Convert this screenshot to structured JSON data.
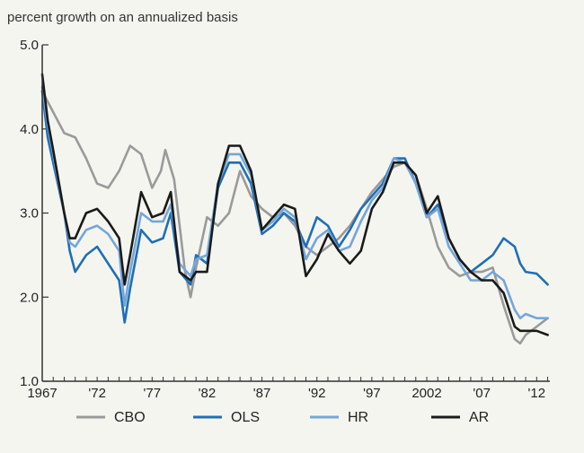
{
  "chart_data": {
    "type": "line",
    "title": "",
    "ylabel": "percent growth on an annualized basis",
    "xlabel": "",
    "xlim": [
      1967,
      2013.2
    ],
    "ylim": [
      1.0,
      5.0
    ],
    "yticks": [
      1.0,
      2.0,
      3.0,
      4.0,
      5.0
    ],
    "ytick_labels": [
      "1.0",
      "2.0",
      "3.0",
      "4.0",
      "5.0"
    ],
    "xticks": [
      1967,
      1972,
      1977,
      1982,
      1987,
      1992,
      1997,
      2002,
      2007,
      2012
    ],
    "xtick_labels": [
      "1967",
      "'72",
      "'77",
      "'82",
      "'87",
      "'92",
      "'97",
      "2002",
      "'07",
      "'12"
    ],
    "legend_position": "bottom",
    "series": [
      {
        "name": "CBO",
        "color": "#9a9a9a",
        "x": [
          1967,
          1968,
          1969,
          1970,
          1971,
          1972,
          1973,
          1974,
          1975,
          1976,
          1977,
          1977.8,
          1978.2,
          1979,
          1980,
          1980.5,
          1981,
          1982,
          1983,
          1984,
          1985,
          1986,
          1987,
          1988,
          1989,
          1990,
          1991,
          1992,
          1993,
          1994,
          1995,
          1996,
          1997,
          1998,
          1999,
          2000,
          2001,
          2002,
          2003,
          2004,
          2005,
          2006,
          2007,
          2008,
          2009,
          2010,
          2010.5,
          2011,
          2012,
          2013
        ],
        "values": [
          4.45,
          4.2,
          3.95,
          3.9,
          3.65,
          3.35,
          3.3,
          3.5,
          3.8,
          3.7,
          3.3,
          3.5,
          3.75,
          3.4,
          2.3,
          2.0,
          2.35,
          2.95,
          2.85,
          3.0,
          3.5,
          3.2,
          3.05,
          2.95,
          3.0,
          2.85,
          2.6,
          2.5,
          2.6,
          2.7,
          2.85,
          3.05,
          3.25,
          3.4,
          3.55,
          3.6,
          3.45,
          3.05,
          2.6,
          2.35,
          2.25,
          2.3,
          2.3,
          2.35,
          1.9,
          1.5,
          1.45,
          1.55,
          1.65,
          1.75
        ]
      },
      {
        "name": "OLS",
        "color": "#1f6fb5",
        "x": [
          1967,
          1967.5,
          1968,
          1969,
          1969.5,
          1970,
          1971,
          1972,
          1973,
          1974,
          1974.5,
          1975,
          1976,
          1977,
          1978,
          1978.7,
          1979.5,
          1980.5,
          1981,
          1982,
          1983,
          1984,
          1985,
          1986,
          1987,
          1988,
          1989,
          1990,
          1991,
          1992,
          1993,
          1994,
          1995,
          1996,
          1997,
          1998,
          1999,
          2000,
          2001,
          2002,
          2003,
          2004,
          2005,
          2006,
          2007,
          2008,
          2009,
          2010,
          2010.5,
          2011,
          2012,
          2013
        ],
        "values": [
          4.45,
          3.9,
          3.6,
          3.0,
          2.55,
          2.3,
          2.5,
          2.6,
          2.4,
          2.2,
          1.7,
          2.1,
          2.8,
          2.65,
          2.7,
          3.0,
          2.3,
          2.15,
          2.5,
          2.4,
          3.3,
          3.6,
          3.6,
          3.35,
          2.75,
          2.85,
          3.0,
          2.9,
          2.6,
          2.95,
          2.85,
          2.6,
          2.8,
          3.05,
          3.2,
          3.35,
          3.65,
          3.65,
          3.35,
          2.95,
          3.1,
          2.7,
          2.45,
          2.3,
          2.4,
          2.5,
          2.7,
          2.6,
          2.4,
          2.3,
          2.28,
          2.15
        ]
      },
      {
        "name": "HR",
        "color": "#74a6d9",
        "x": [
          1967,
          1967.5,
          1968,
          1969,
          1969.5,
          1970,
          1971,
          1972,
          1973,
          1974,
          1974.5,
          1975,
          1976,
          1977,
          1978,
          1978.7,
          1979.5,
          1980.5,
          1981,
          1982,
          1983,
          1984,
          1985,
          1986,
          1987,
          1988,
          1989,
          1990,
          1991,
          1992,
          1993,
          1994,
          1995,
          1996,
          1997,
          1998,
          1999,
          2000,
          2001,
          2002,
          2003,
          2004,
          2005,
          2006,
          2007,
          2008,
          2009,
          2010,
          2010.5,
          2011,
          2012,
          2013
        ],
        "values": [
          4.5,
          4.05,
          3.7,
          3.0,
          2.65,
          2.6,
          2.8,
          2.85,
          2.75,
          2.55,
          1.9,
          2.3,
          3.0,
          2.9,
          2.9,
          3.1,
          2.4,
          2.25,
          2.45,
          2.5,
          3.35,
          3.7,
          3.7,
          3.45,
          2.8,
          2.9,
          3.05,
          2.95,
          2.45,
          2.7,
          2.8,
          2.55,
          2.6,
          2.9,
          3.15,
          3.3,
          3.65,
          3.6,
          3.35,
          2.95,
          3.05,
          2.6,
          2.4,
          2.2,
          2.2,
          2.3,
          2.2,
          1.85,
          1.75,
          1.8,
          1.75,
          1.75
        ]
      },
      {
        "name": "AR",
        "color": "#1a1a1a",
        "x": [
          1967,
          1967.5,
          1968,
          1969,
          1969.5,
          1970,
          1971,
          1972,
          1973,
          1974,
          1974.5,
          1975,
          1976,
          1977,
          1978,
          1978.7,
          1979.5,
          1980.5,
          1981,
          1982,
          1983,
          1984,
          1985,
          1986,
          1987,
          1988,
          1989,
          1990,
          1991,
          1992,
          1993,
          1994,
          1995,
          1996,
          1997,
          1998,
          1999,
          2000,
          2001,
          2002,
          2003,
          2004,
          2005,
          2006,
          2007,
          2008,
          2009,
          2010,
          2010.5,
          2011,
          2012,
          2013
        ],
        "values": [
          4.65,
          4.1,
          3.75,
          3.0,
          2.7,
          2.7,
          3.0,
          3.05,
          2.9,
          2.7,
          2.15,
          2.5,
          3.25,
          2.95,
          3.0,
          3.25,
          2.3,
          2.2,
          2.3,
          2.3,
          3.35,
          3.8,
          3.8,
          3.5,
          2.8,
          2.95,
          3.1,
          3.05,
          2.25,
          2.45,
          2.75,
          2.55,
          2.4,
          2.55,
          3.05,
          3.25,
          3.6,
          3.6,
          3.45,
          3.0,
          3.2,
          2.7,
          2.45,
          2.3,
          2.2,
          2.2,
          2.05,
          1.65,
          1.6,
          1.6,
          1.6,
          1.55
        ]
      }
    ]
  }
}
